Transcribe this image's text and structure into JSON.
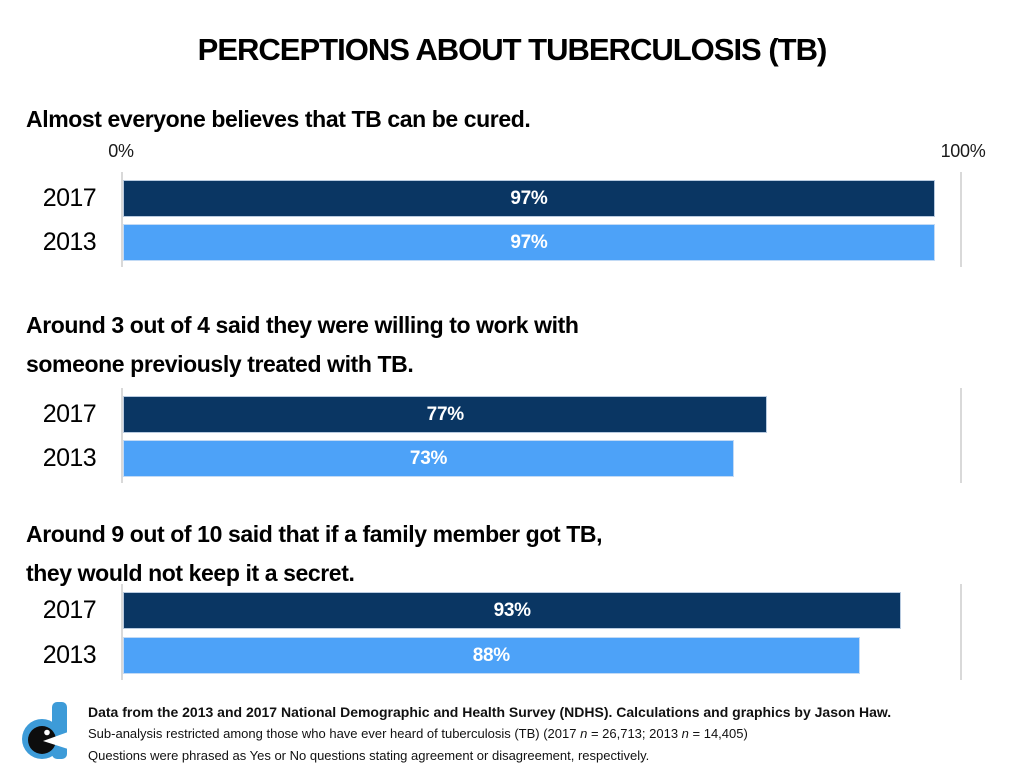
{
  "title": "PERCEPTIONS ABOUT TUBERCULOSIS (TB)",
  "axis": {
    "left_label": "0%",
    "right_label": "100%",
    "range": [
      0,
      100
    ]
  },
  "colors": {
    "bar_2017": "#0a3663",
    "bar_2013": "#4da2f8",
    "gridline": "#d9d9d9",
    "bar_label_text": "#ffffff",
    "logo_blue": "#3d9bd8",
    "logo_black": "#0d0d0d"
  },
  "chart_data": [
    {
      "type": "bar",
      "orientation": "horizontal",
      "title": "Almost everyone believes that TB can be cured.",
      "categories": [
        "2017",
        "2013"
      ],
      "values": [
        97,
        97
      ],
      "value_labels": [
        "97%",
        "97%"
      ],
      "xlim": [
        0,
        100
      ],
      "grid": "edges-only",
      "legend": "none"
    },
    {
      "type": "bar",
      "orientation": "horizontal",
      "title": "Around 3 out of 4 said they were willing to work with\nsomeone previously treated with TB.",
      "categories": [
        "2017",
        "2013"
      ],
      "values": [
        77,
        73
      ],
      "value_labels": [
        "77%",
        "73%"
      ],
      "xlim": [
        0,
        100
      ],
      "grid": "edges-only",
      "legend": "none"
    },
    {
      "type": "bar",
      "orientation": "horizontal",
      "title": "Around 9 out of 10 said that if a family member got TB,\nthey would not keep it a secret.",
      "categories": [
        "2017",
        "2013"
      ],
      "values": [
        93,
        88
      ],
      "value_labels": [
        "93%",
        "88%"
      ],
      "xlim": [
        0,
        100
      ],
      "grid": "edges-only",
      "legend": "none"
    }
  ],
  "footer": {
    "line1": "Data from the 2013 and 2017 National Demographic and Health Survey (NDHS). Calculations and graphics by Jason Haw.",
    "line2_parts": {
      "p0": "Sub-analysis restricted among those who have ever heard of tuberculosis (TB) (2017 ",
      "p1": "n",
      "p2": " = 26,713; 2013 ",
      "p3": "n",
      "p4": " = 14,405)"
    },
    "line3": "Questions were phrased as Yes or No questions stating agreement or disagreement, respectively.",
    "logo_name": "jason-haw-d-logo"
  }
}
